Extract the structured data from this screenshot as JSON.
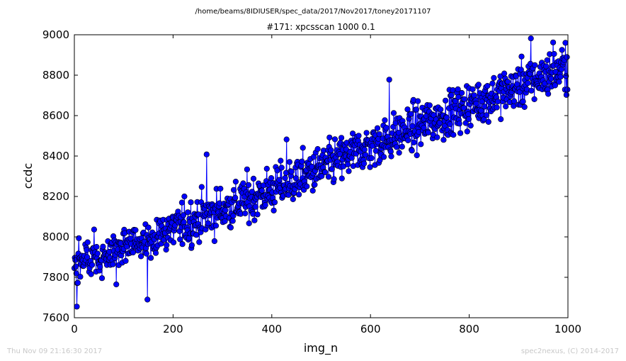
{
  "suptitle": "/home/beams/8IDIUSER/spec_data/2017/Nov2017/toney20171107",
  "footer": {
    "timestamp": "Thu Nov 09 21:16:30 2017",
    "credit": "spec2nexus, (C) 2014-2017"
  },
  "colors": {
    "marker": "#0000ff",
    "line": "#0000ff",
    "axes": "#000000"
  },
  "chart_data": {
    "type": "line",
    "title": "#171: xpcsscan 1000 0.1",
    "xlabel": "img_n",
    "ylabel": "ccdc",
    "xlim": [
      0,
      1000
    ],
    "ylim": [
      7600,
      9000
    ],
    "xticks": [
      0,
      200,
      400,
      600,
      800,
      1000
    ],
    "yticks": [
      7600,
      7800,
      8000,
      8200,
      8400,
      8600,
      8800,
      9000
    ],
    "grid": false,
    "legend": "none",
    "marker": "circle",
    "series": [
      {
        "points_x_start": 0,
        "points_x_step": 1,
        "points_count": 1000,
        "trend": {
          "x": [
            0,
            200,
            400,
            600,
            800,
            1000
          ],
          "y": [
            7850,
            8040,
            8230,
            8450,
            8650,
            8840
          ]
        },
        "notable_points": [
          {
            "x": 5,
            "y": 7655
          },
          {
            "x": 148,
            "y": 7690
          },
          {
            "x": 268,
            "y": 8408
          },
          {
            "x": 430,
            "y": 8482
          },
          {
            "x": 638,
            "y": 8778
          },
          {
            "x": 925,
            "y": 8982
          },
          {
            "x": 970,
            "y": 8962
          },
          {
            "x": 995,
            "y": 8960
          }
        ]
      }
    ]
  }
}
